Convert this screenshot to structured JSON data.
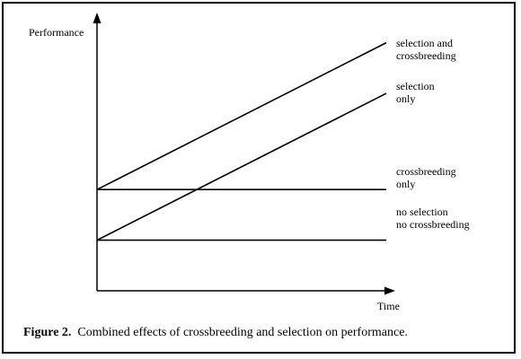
{
  "chart_data": {
    "type": "line",
    "title": "",
    "xlabel": "Time",
    "ylabel": "Performance",
    "x_ticks": [],
    "y_ticks": [],
    "grid": false,
    "legend": "none (series labeled at right end of each line)",
    "series": [
      {
        "name": "selection and\ncrossbreeding",
        "label_lines": [
          "selection and",
          "crossbreeding"
        ],
        "x": [
          0,
          1
        ],
        "y": [
          2,
          4.9
        ]
      },
      {
        "name": "selection\nonly",
        "label_lines": [
          "selection",
          "only"
        ],
        "x": [
          0,
          1
        ],
        "y": [
          1,
          3.9
        ]
      },
      {
        "name": "crossbreeding\nonly",
        "label_lines": [
          "crossbreeding",
          "only"
        ],
        "x": [
          0,
          1
        ],
        "y": [
          2,
          2
        ]
      },
      {
        "name": "no selection\nno crossbreeding",
        "label_lines": [
          "no selection",
          "no crossbreeding"
        ],
        "x": [
          0,
          1
        ],
        "y": [
          1,
          1
        ]
      }
    ],
    "colors": {
      "line": "#000000",
      "axis": "#000000"
    }
  },
  "caption": {
    "prefix": "Figure 2.",
    "text": "Combined effects of crossbreeding and selection on performance."
  }
}
